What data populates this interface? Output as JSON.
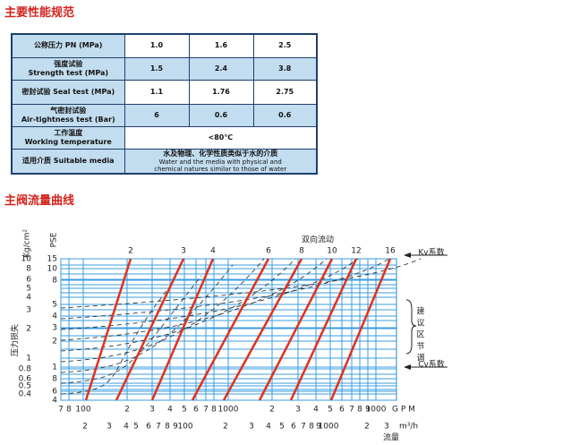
{
  "sections": [
    {
      "title": "主要性能规范"
    },
    {
      "title": "主阀流量曲线"
    }
  ],
  "table": {
    "rows": [
      {
        "label": [
          "公称压力 PN (MPa)"
        ],
        "values": [
          [
            "1.0"
          ],
          [
            "1.6"
          ],
          [
            "2.5"
          ]
        ]
      },
      {
        "label": [
          "强度试验",
          "Strength test (MPa)"
        ],
        "values": [
          [
            "1.5"
          ],
          [
            "2.4"
          ],
          [
            "3.8"
          ]
        ]
      },
      {
        "label": [
          "密封试验  Seal test (MPa)"
        ],
        "values": [
          [
            "1.1"
          ],
          [
            "1.76"
          ],
          [
            "2.75"
          ]
        ]
      },
      {
        "label": [
          "气密封试验",
          "Air-tightness test (Bar)"
        ],
        "values": [
          [
            "6"
          ],
          [
            "0.6"
          ],
          [
            "0.6"
          ]
        ]
      },
      {
        "label": [
          "工作温度",
          "Working temperature"
        ],
        "values": [
          [
            "<80℃"
          ]
        ]
      },
      {
        "label": [
          "适用介质  Suitable media"
        ],
        "values": [
          [
            "水及物理、化学性质类似于水的介质",
            "Water and the media with physical and",
            "chemical natures similar to those of water"
          ]
        ]
      }
    ]
  },
  "flow_chart": {
    "top_title": "双向流动",
    "kv_label": "Kv系数",
    "cv_label": "Cv系数",
    "zone_label": [
      "建",
      "议",
      "区",
      "节",
      "调"
    ],
    "y_axis_title": "压力损失",
    "kg_unit": "Kg/cm²",
    "pse_unit": "PSE",
    "kg_ticks": [
      "10",
      "8",
      "6",
      "5",
      "4",
      "3",
      "2",
      "1",
      "0.8",
      "0.6",
      "0.5",
      "0.4"
    ],
    "pse_ticks": [
      "15",
      "10",
      "8",
      "5",
      "4",
      "3",
      "2",
      "1",
      "8",
      "6",
      "4"
    ],
    "kv_ticks": [
      "2",
      "3",
      "4",
      "6",
      "8",
      "10",
      "12",
      "16"
    ],
    "gpm_ticks": [
      "7",
      "8",
      "100",
      "2",
      "3",
      "4",
      "5",
      "6",
      "7",
      "8",
      "1000",
      "2",
      "3",
      "4",
      "5",
      "6",
      "7",
      "8",
      "9",
      "1000"
    ],
    "gpm_unit": "G P M",
    "m3h_ticks": [
      "2",
      "3",
      "4",
      "5",
      "6",
      "7",
      "8",
      "9",
      "100",
      "2",
      "3",
      "4",
      "5",
      "6",
      "7",
      "8",
      "9",
      "1000",
      "2",
      "3"
    ],
    "m3h_unit": "m³/h",
    "x_axis_title": "流量"
  }
}
